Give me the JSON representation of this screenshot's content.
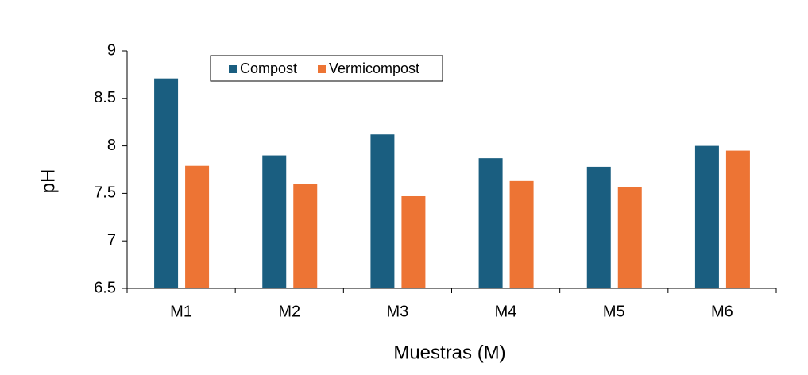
{
  "chart_data": {
    "type": "bar",
    "x_label": "Muestras (M)",
    "y_label": "pH",
    "categories": [
      "M1",
      "M2",
      "M3",
      "M4",
      "M5",
      "M6"
    ],
    "series": [
      {
        "name": "Compost",
        "color": "#1a5e80",
        "values": [
          8.71,
          7.9,
          8.12,
          7.87,
          7.78,
          8.0
        ]
      },
      {
        "name": "Vermicompost",
        "color": "#ed7434",
        "values": [
          7.79,
          7.6,
          7.47,
          7.63,
          7.57,
          7.95
        ]
      }
    ],
    "ylim": [
      6.5,
      9
    ],
    "yticks": [
      6.5,
      7,
      7.5,
      8,
      8.5,
      9
    ],
    "grid": false,
    "legend": "top"
  }
}
